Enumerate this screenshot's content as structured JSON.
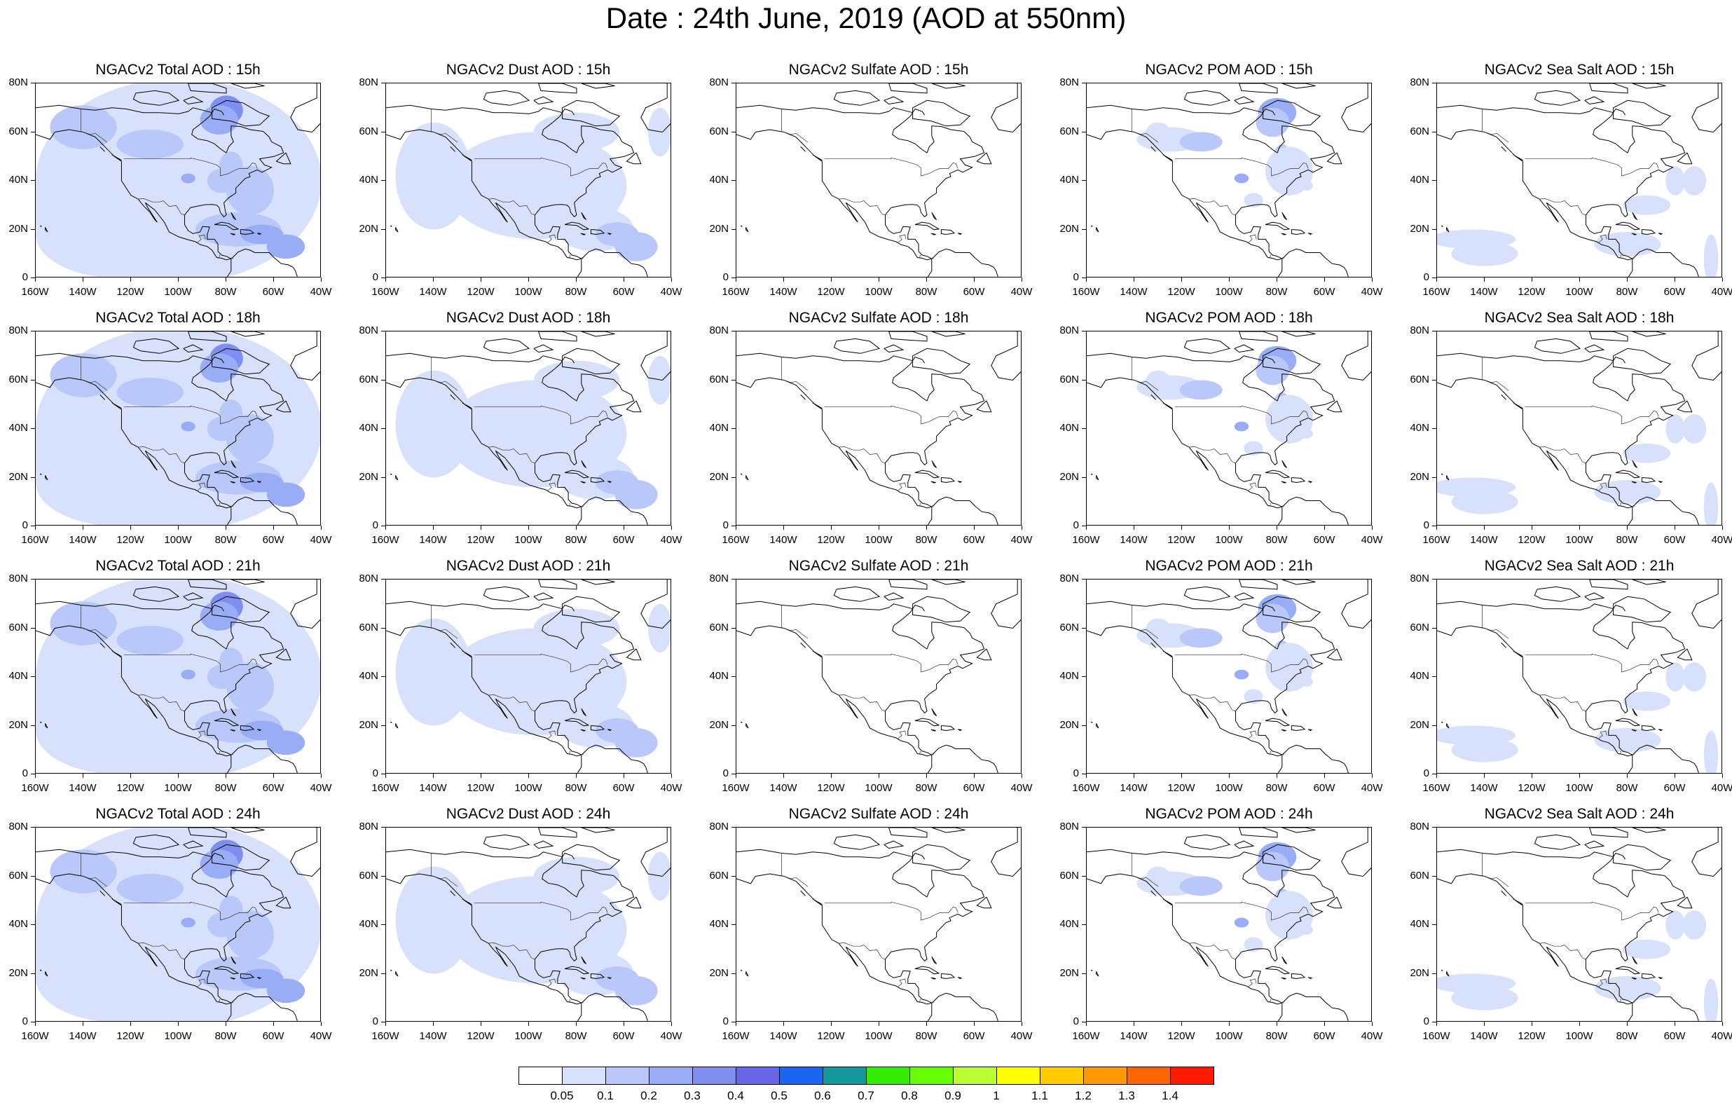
{
  "title": "Date : 24th June, 2019 (AOD at 550nm)",
  "rows": [
    {
      "hour": "15h",
      "titles": [
        "NGACv2 Total AOD : 15h",
        "NGACv2 Dust AOD : 15h",
        "NGACv2 Sulfate AOD : 15h",
        "NGACv2 POM AOD : 15h",
        "NGACv2 Sea Salt AOD : 15h"
      ]
    },
    {
      "hour": "18h",
      "titles": [
        "NGACv2 Total AOD : 18h",
        "NGACv2 Dust AOD : 18h",
        "NGACv2 Sulfate AOD : 18h",
        "NGACv2 POM AOD : 18h",
        "NGACv2 Sea Salt AOD : 18h"
      ]
    },
    {
      "hour": "21h",
      "titles": [
        "NGACv2 Total AOD : 21h",
        "NGACv2 Dust AOD : 21h",
        "NGACv2 Sulfate AOD : 21h",
        "NGACv2 POM AOD : 21h",
        "NGACv2 Sea Salt AOD : 21h"
      ]
    },
    {
      "hour": "24h",
      "titles": [
        "NGACv2 Total AOD : 24h",
        "NGACv2 Dust AOD : 24h",
        "NGACv2 Sulfate AOD : 24h",
        "NGACv2 POM AOD : 24h",
        "NGACv2 Sea Salt  AOD : 24h"
      ]
    }
  ],
  "lat_labels": [
    "80N",
    "60N",
    "40N",
    "20N",
    "0"
  ],
  "lon_labels": [
    "160W",
    "140W",
    "120W",
    "100W",
    "80W",
    "60W",
    "40W"
  ],
  "colorbar": {
    "labels": [
      "0.05",
      "0.1",
      "0.2",
      "0.3",
      "0.4",
      "0.5",
      "0.6",
      "0.7",
      "0.8",
      "0.9",
      "1",
      "1.1",
      "1.2",
      "1.3",
      "1.4"
    ],
    "colors": [
      "#ffffff",
      "#d8e1fb",
      "#b9c8f8",
      "#98adf5",
      "#7f8ff0",
      "#6666e6",
      "#1a66f0",
      "#139999",
      "#33ee00",
      "#66ff00",
      "#bbff33",
      "#ffff00",
      "#ffcc00",
      "#ff9900",
      "#ff6600",
      "#ff1a00"
    ]
  }
}
